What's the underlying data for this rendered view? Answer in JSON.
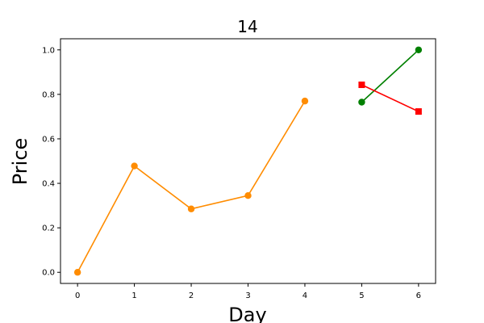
{
  "chart_data": {
    "type": "line",
    "title": "14",
    "xlabel": "Day",
    "ylabel": "Price",
    "xlim": [
      -0.3,
      6.3
    ],
    "ylim": [
      -0.05,
      1.05
    ],
    "x_ticks": [
      0,
      1,
      2,
      3,
      4,
      5,
      6
    ],
    "y_ticks": [
      "0.0",
      "0.2",
      "0.4",
      "0.6",
      "0.8",
      "1.0"
    ],
    "grid": false,
    "series": [
      {
        "color": "#ff8c00",
        "marker": "circle",
        "x": [
          0,
          1,
          2,
          3,
          4
        ],
        "y": [
          0.0,
          0.478,
          0.285,
          0.345,
          0.77
        ]
      },
      {
        "color": "#008000",
        "marker": "circle",
        "x": [
          5,
          6
        ],
        "y": [
          0.765,
          1.0
        ]
      },
      {
        "color": "#ff0000",
        "marker": "square",
        "x": [
          5,
          6
        ],
        "y": [
          0.843,
          0.723
        ]
      }
    ]
  }
}
